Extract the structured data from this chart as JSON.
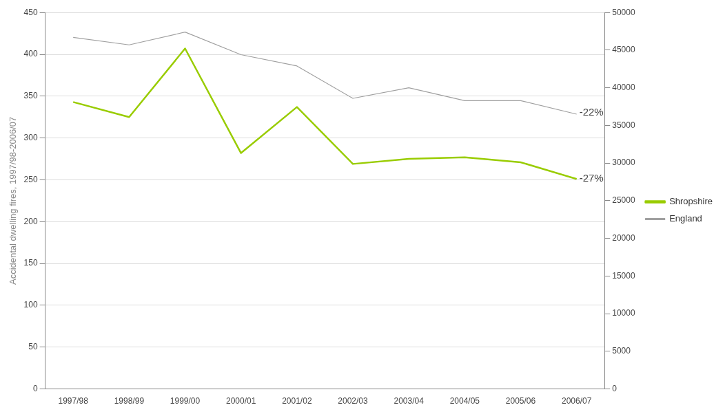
{
  "chart_data": {
    "type": "line",
    "ylabel": "Accidental dwelling fires, 1997/98-2006/07",
    "categories": [
      "1997/98",
      "1998/99",
      "1999/00",
      "2000/01",
      "2001/02",
      "2002/03",
      "2003/04",
      "2004/05",
      "2005/06",
      "2006/07"
    ],
    "series": [
      {
        "name": "Shropshire",
        "color": "#99cc00",
        "values": [
          343,
          325,
          407,
          282,
          337,
          269,
          275,
          277,
          271,
          251
        ]
      },
      {
        "name": "England",
        "color": "#a0a0a0",
        "axis": "y2",
        "values": [
          46700,
          45700,
          47400,
          44400,
          42900,
          38600,
          40000,
          38300,
          38300,
          36500
        ]
      }
    ],
    "ylim": [
      0,
      450
    ],
    "yticks": [
      0,
      50,
      100,
      150,
      200,
      250,
      300,
      350,
      400,
      450
    ],
    "y2lim": [
      0,
      50000
    ],
    "y2ticks": [
      0,
      5000,
      10000,
      15000,
      20000,
      25000,
      30000,
      35000,
      40000,
      45000,
      50000
    ],
    "annotations": [
      {
        "text": "-22%",
        "x": "2006/07",
        "y": 330
      },
      {
        "text": "-27%",
        "x": "2006/07",
        "y": 251
      }
    ],
    "grid": "y",
    "legend": "right",
    "marker": "none",
    "line_style": "solid"
  }
}
